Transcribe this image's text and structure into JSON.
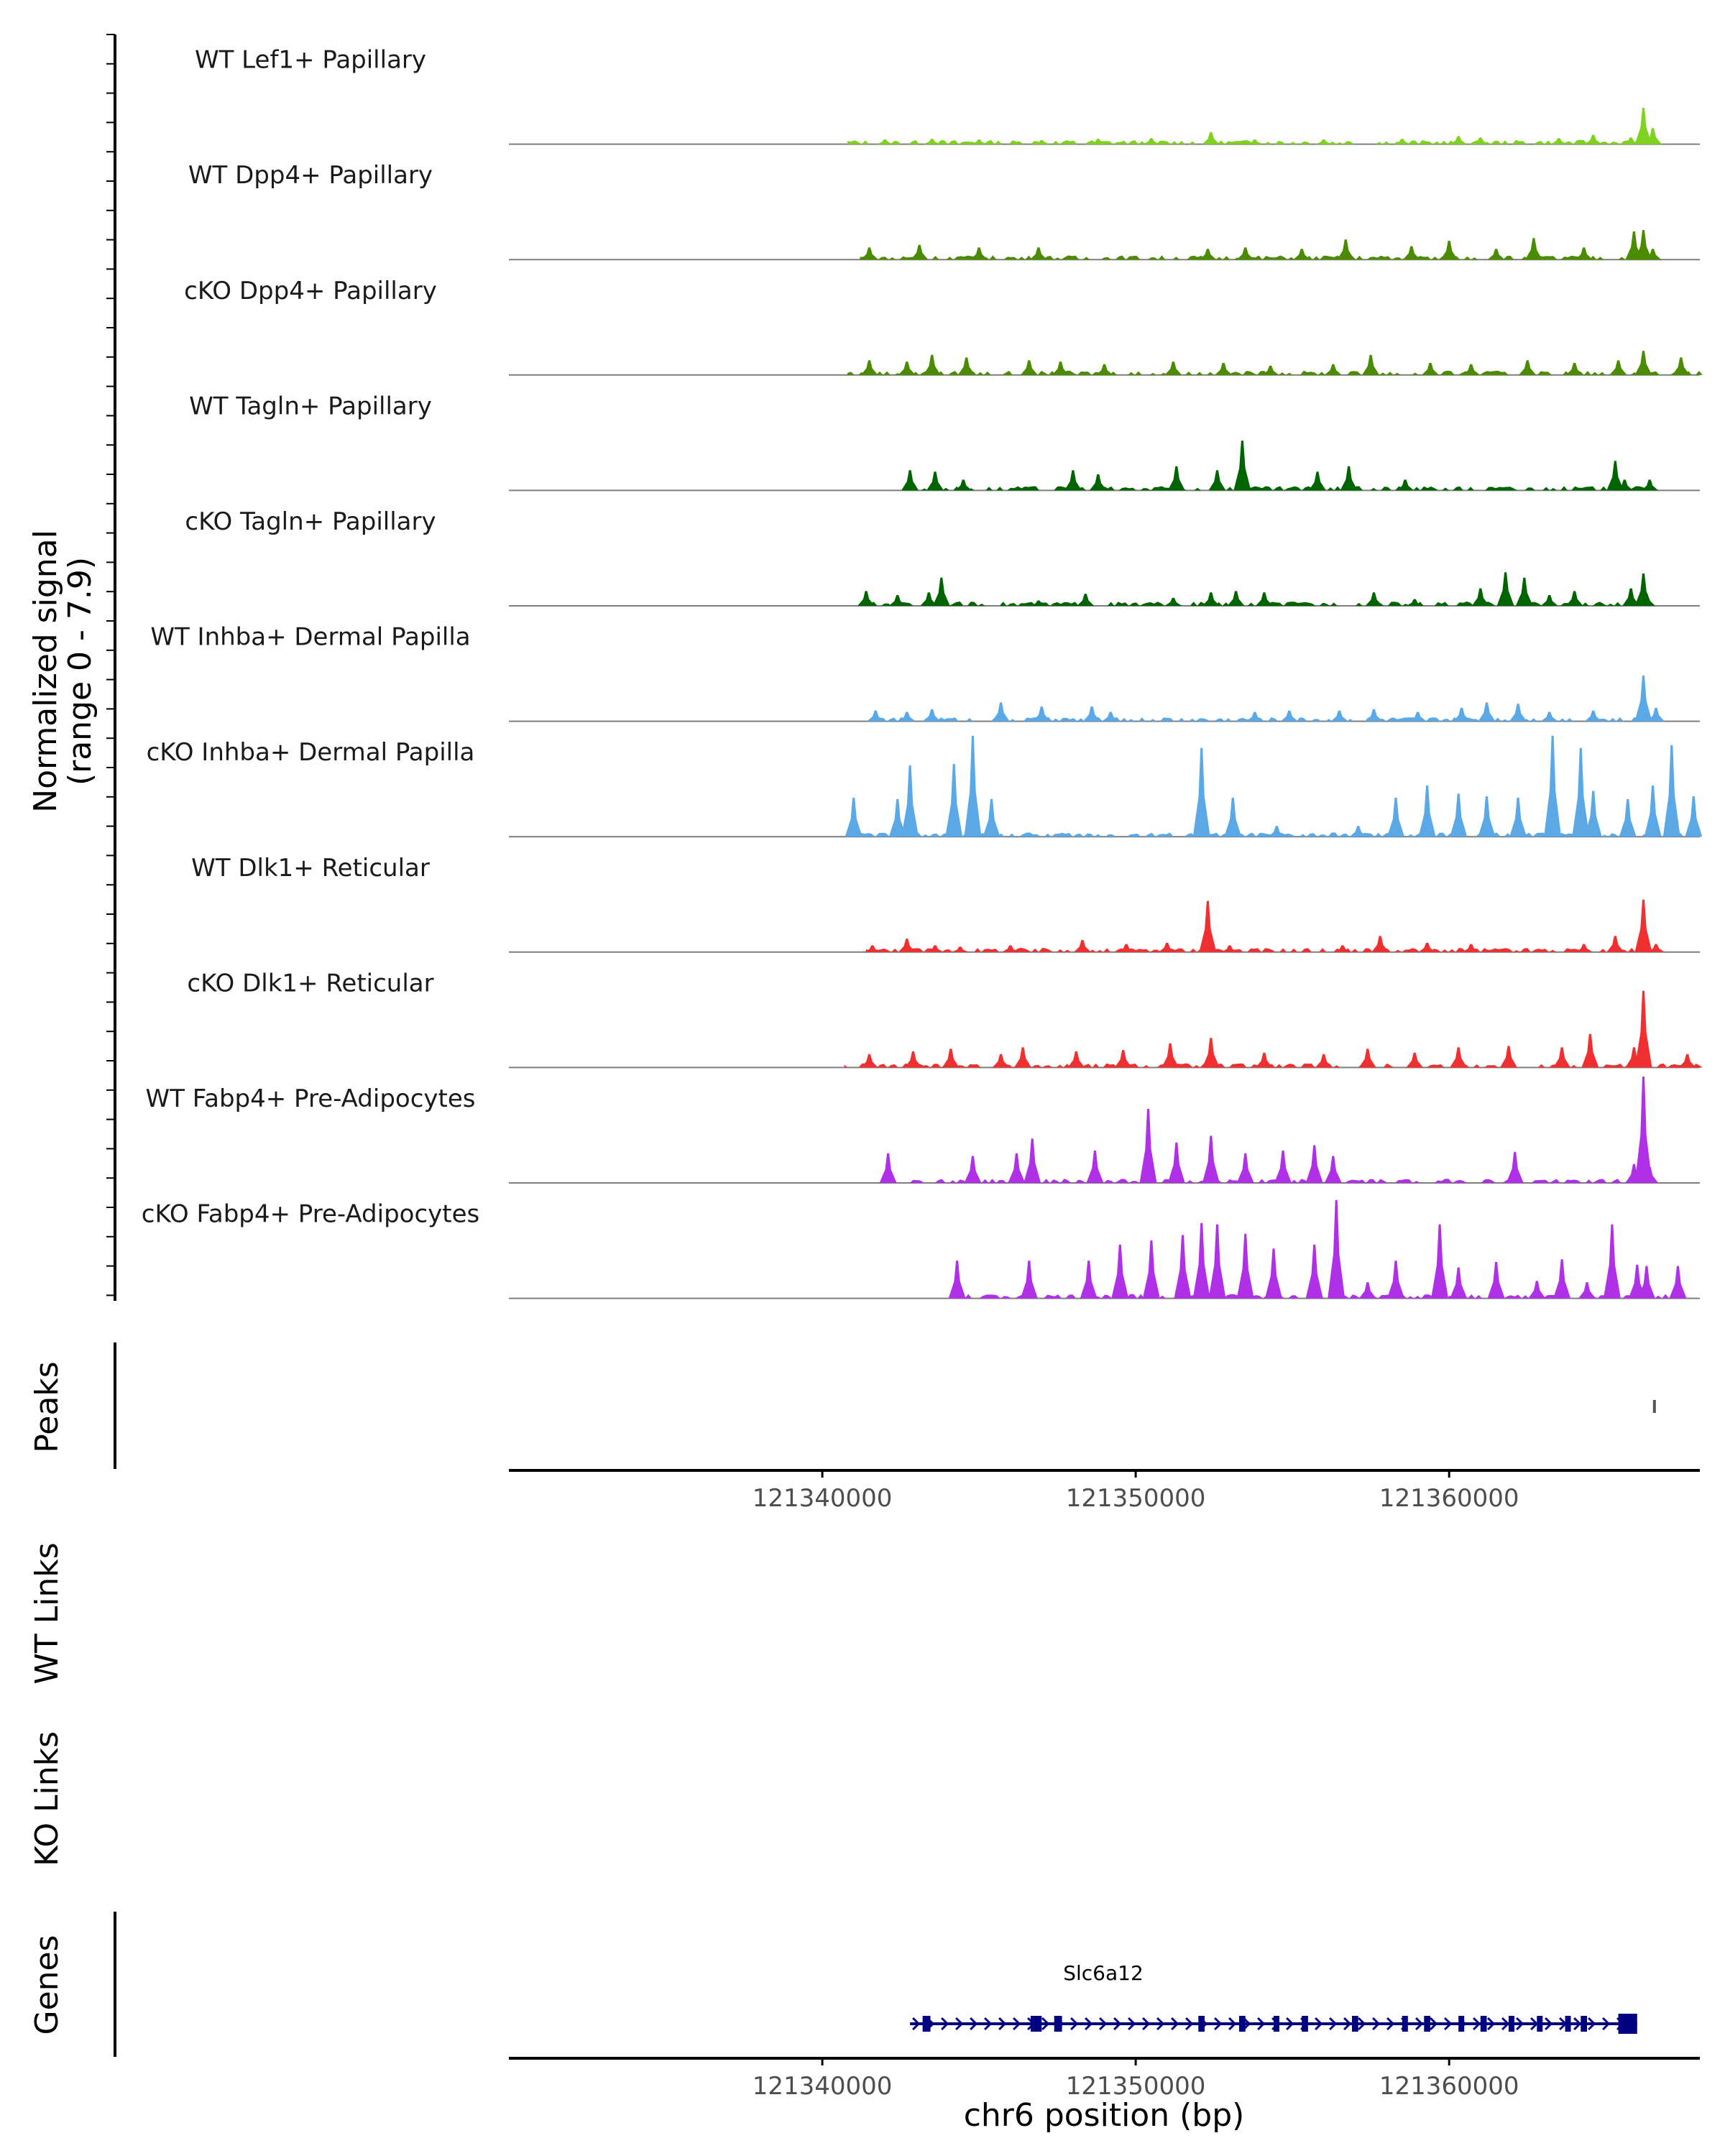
{
  "chart_data": {
    "type": "area",
    "chromosome": "chr6",
    "xlim": [
      121330000,
      121368000
    ],
    "x_ticks": [
      121340000,
      121350000,
      121360000
    ],
    "x_tick_labels": [
      "121340000",
      "121350000",
      "121360000"
    ],
    "xlabel": "chr6 position (bp)",
    "signal_ylabel_line1": "Normalized signal",
    "signal_ylabel_line2": "(range 0 - 7.9)",
    "ylim": [
      0,
      7.9
    ],
    "colors": {
      "lef1": "#7fd320",
      "dpp4": "#4b8b00",
      "tagln": "#006400",
      "inhba": "#5aa8e6",
      "dlk1": "#f03030",
      "fabp4": "#b030e8",
      "peak": "#555555",
      "gene": "#000080",
      "baseline": "#7f7f7f",
      "axis": "#000000"
    },
    "tracks": [
      {
        "label": "WT Lef1+ Papillary",
        "color_key": "lef1",
        "start": 121340800,
        "end": 121366800,
        "peaks": [
          [
            121342000,
            0.35
          ],
          [
            121343500,
            0.4
          ],
          [
            121345000,
            0.35
          ],
          [
            121347000,
            0.3
          ],
          [
            121348800,
            0.4
          ],
          [
            121350500,
            0.45
          ],
          [
            121352400,
            0.9
          ],
          [
            121353800,
            0.35
          ],
          [
            121356000,
            0.35
          ],
          [
            121358500,
            0.4
          ],
          [
            121360300,
            0.6
          ],
          [
            121361000,
            0.5
          ],
          [
            121363500,
            0.45
          ],
          [
            121364600,
            0.7
          ],
          [
            121365800,
            0.5
          ],
          [
            121366200,
            2.7
          ],
          [
            121366500,
            1.2
          ]
        ]
      },
      {
        "label": "WT Dpp4+ Papillary",
        "color_key": "dpp4",
        "start": 121341200,
        "end": 121366500,
        "peaks": [
          [
            121341500,
            0.9
          ],
          [
            121343100,
            1.1
          ],
          [
            121345000,
            0.9
          ],
          [
            121346900,
            0.9
          ],
          [
            121352300,
            0.8
          ],
          [
            121353500,
            0.9
          ],
          [
            121355300,
            0.8
          ],
          [
            121356700,
            1.5
          ],
          [
            121358800,
            1.0
          ],
          [
            121360000,
            1.4
          ],
          [
            121361500,
            0.8
          ],
          [
            121362700,
            1.6
          ],
          [
            121364300,
            0.9
          ],
          [
            121365900,
            2.1
          ],
          [
            121366200,
            2.2
          ],
          [
            121366500,
            0.8
          ]
        ]
      },
      {
        "label": "cKO Dpp4+ Papillary",
        "color_key": "dpp4",
        "start": 121340800,
        "end": 121368200,
        "peaks": [
          [
            121341500,
            1.1
          ],
          [
            121342700,
            1.0
          ],
          [
            121343500,
            1.5
          ],
          [
            121344600,
            1.3
          ],
          [
            121346600,
            1.1
          ],
          [
            121347600,
            1.0
          ],
          [
            121349000,
            0.8
          ],
          [
            121351200,
            1.0
          ],
          [
            121352800,
            0.9
          ],
          [
            121354300,
            0.7
          ],
          [
            121356300,
            0.8
          ],
          [
            121357500,
            1.5
          ],
          [
            121359400,
            0.9
          ],
          [
            121360700,
            0.8
          ],
          [
            121362500,
            1.1
          ],
          [
            121364000,
            0.9
          ],
          [
            121365400,
            1.1
          ],
          [
            121366200,
            1.8
          ],
          [
            121367400,
            1.3
          ]
        ]
      },
      {
        "label": "WT Tagln+ Papillary",
        "color_key": "tagln",
        "start": 121342800,
        "end": 121366300,
        "peaks": [
          [
            121342800,
            1.5
          ],
          [
            121343600,
            1.4
          ],
          [
            121344500,
            0.8
          ],
          [
            121348000,
            1.5
          ],
          [
            121348800,
            1.2
          ],
          [
            121351300,
            1.8
          ],
          [
            121352600,
            1.5
          ],
          [
            121353400,
            3.7
          ],
          [
            121355800,
            1.4
          ],
          [
            121356800,
            1.8
          ],
          [
            121358600,
            0.8
          ],
          [
            121365300,
            2.2
          ],
          [
            121365600,
            0.8
          ],
          [
            121366400,
            0.8
          ]
        ]
      },
      {
        "label": "cKO Tagln+ Papillary",
        "color_key": "tagln",
        "start": 121341300,
        "end": 121366300,
        "peaks": [
          [
            121341400,
            1.1
          ],
          [
            121342400,
            0.8
          ],
          [
            121343400,
            1.0
          ],
          [
            121343800,
            2.1
          ],
          [
            121346900,
            0.4
          ],
          [
            121348400,
            0.9
          ],
          [
            121351200,
            0.6
          ],
          [
            121352400,
            1.0
          ],
          [
            121353200,
            1.1
          ],
          [
            121354100,
            1.0
          ],
          [
            121357600,
            1.0
          ],
          [
            121358900,
            0.5
          ],
          [
            121361000,
            1.3
          ],
          [
            121361800,
            2.5
          ],
          [
            121362400,
            2.1
          ],
          [
            121363200,
            0.8
          ],
          [
            121364000,
            1.1
          ],
          [
            121365800,
            1.3
          ],
          [
            121366200,
            2.4
          ],
          [
            121366300,
            0.9
          ]
        ]
      },
      {
        "label": "WT Inhba+ Dermal Papilla",
        "color_key": "inhba",
        "start": 121341600,
        "end": 121366600,
        "peaks": [
          [
            121341700,
            0.8
          ],
          [
            121342700,
            0.7
          ],
          [
            121343500,
            0.9
          ],
          [
            121345700,
            1.4
          ],
          [
            121347000,
            1.1
          ],
          [
            121348600,
            1.1
          ],
          [
            121349200,
            0.7
          ],
          [
            121353800,
            0.7
          ],
          [
            121354900,
            0.8
          ],
          [
            121356500,
            0.8
          ],
          [
            121357600,
            0.9
          ],
          [
            121359000,
            0.7
          ],
          [
            121360400,
            1.0
          ],
          [
            121361200,
            1.4
          ],
          [
            121362200,
            1.3
          ],
          [
            121363200,
            0.7
          ],
          [
            121364600,
            0.8
          ],
          [
            121366200,
            3.4
          ],
          [
            121366600,
            1.0
          ]
        ]
      },
      {
        "label": "cKO Inhba+ Dermal Papilla",
        "color_key": "inhba",
        "start": 121341000,
        "end": 121367900,
        "peaks": [
          [
            121341000,
            2.9
          ],
          [
            121342400,
            2.8
          ],
          [
            121342800,
            5.3
          ],
          [
            121344200,
            5.4
          ],
          [
            121344800,
            7.5
          ],
          [
            121345400,
            2.8
          ],
          [
            121352100,
            6.6
          ],
          [
            121353100,
            2.9
          ],
          [
            121354500,
            0.8
          ],
          [
            121357100,
            0.8
          ],
          [
            121358300,
            2.9
          ],
          [
            121359300,
            3.8
          ],
          [
            121360300,
            3.2
          ],
          [
            121361200,
            3.0
          ],
          [
            121362200,
            2.9
          ],
          [
            121363300,
            7.5
          ],
          [
            121364200,
            6.6
          ],
          [
            121364600,
            3.4
          ],
          [
            121365700,
            2.8
          ],
          [
            121366500,
            3.8
          ],
          [
            121367100,
            6.8
          ],
          [
            121367800,
            3.0
          ]
        ]
      },
      {
        "label": "WT Dlk1+ Reticular",
        "color_key": "dlk1",
        "start": 121341400,
        "end": 121366600,
        "peaks": [
          [
            121341600,
            0.5
          ],
          [
            121342700,
            1.0
          ],
          [
            121343600,
            0.5
          ],
          [
            121344400,
            0.4
          ],
          [
            121346000,
            0.5
          ],
          [
            121348300,
            0.9
          ],
          [
            121349700,
            0.6
          ],
          [
            121351000,
            0.7
          ],
          [
            121352300,
            3.8
          ],
          [
            121353000,
            0.5
          ],
          [
            121356600,
            0.5
          ],
          [
            121357800,
            1.2
          ],
          [
            121359300,
            0.7
          ],
          [
            121360700,
            0.6
          ],
          [
            121364300,
            0.6
          ],
          [
            121365300,
            1.2
          ],
          [
            121366200,
            3.9
          ],
          [
            121366600,
            0.6
          ]
        ]
      },
      {
        "label": "cKO Dlk1+ Reticular",
        "color_key": "dlk1",
        "start": 121340700,
        "end": 121368100,
        "peaks": [
          [
            121341500,
            1.0
          ],
          [
            121342900,
            1.2
          ],
          [
            121344100,
            1.4
          ],
          [
            121345700,
            1.0
          ],
          [
            121346400,
            1.5
          ],
          [
            121348100,
            1.2
          ],
          [
            121349600,
            1.3
          ],
          [
            121351100,
            1.8
          ],
          [
            121352400,
            2.2
          ],
          [
            121354100,
            1.1
          ],
          [
            121356000,
            1.0
          ],
          [
            121357400,
            1.4
          ],
          [
            121358900,
            1.1
          ],
          [
            121360300,
            1.5
          ],
          [
            121361900,
            1.6
          ],
          [
            121363600,
            1.5
          ],
          [
            121364500,
            2.5
          ],
          [
            121365900,
            1.5
          ],
          [
            121366200,
            5.7
          ],
          [
            121367600,
            1.0
          ]
        ]
      },
      {
        "label": "WT Fabp4+ Pre-Adipocytes",
        "color_key": "fabp4",
        "start": 121342100,
        "end": 121366300,
        "peaks": [
          [
            121342100,
            2.2
          ],
          [
            121344800,
            2.0
          ],
          [
            121346200,
            2.2
          ],
          [
            121346700,
            3.3
          ],
          [
            121348700,
            2.4
          ],
          [
            121350400,
            5.5
          ],
          [
            121351300,
            3.0
          ],
          [
            121352400,
            3.5
          ],
          [
            121353500,
            2.2
          ],
          [
            121354700,
            2.4
          ],
          [
            121355700,
            2.8
          ],
          [
            121356300,
            2.0
          ],
          [
            121362100,
            2.3
          ],
          [
            121365900,
            1.4
          ],
          [
            121366200,
            7.9
          ],
          [
            121366400,
            1.2
          ]
        ]
      },
      {
        "label": "cKO Fabp4+ Pre-Adipocytes",
        "color_key": "fabp4",
        "start": 121344200,
        "end": 121367300,
        "peaks": [
          [
            121344300,
            2.8
          ],
          [
            121346600,
            2.8
          ],
          [
            121348500,
            2.8
          ],
          [
            121349500,
            4.0
          ],
          [
            121350500,
            4.3
          ],
          [
            121351500,
            4.7
          ],
          [
            121352100,
            5.6
          ],
          [
            121352600,
            5.5
          ],
          [
            121353500,
            4.8
          ],
          [
            121354400,
            3.7
          ],
          [
            121355700,
            4.0
          ],
          [
            121356400,
            7.3
          ],
          [
            121357400,
            1.2
          ],
          [
            121358300,
            2.8
          ],
          [
            121359700,
            5.5
          ],
          [
            121360300,
            2.3
          ],
          [
            121361500,
            2.7
          ],
          [
            121362800,
            1.3
          ],
          [
            121363600,
            2.9
          ],
          [
            121364400,
            1.2
          ],
          [
            121365200,
            5.5
          ],
          [
            121366000,
            2.5
          ],
          [
            121366300,
            2.4
          ],
          [
            121367300,
            2.4
          ]
        ]
      }
    ],
    "peaks_track": {
      "label": "Peaks",
      "intervals": [
        [
          121366500,
          121366600
        ]
      ]
    },
    "links_tracks": [
      "WT Links",
      "KO Links"
    ],
    "genes_track": {
      "label": "Genes",
      "gene": {
        "name": "Slc6a12",
        "start": 121342800,
        "end": 121366000,
        "strand": "+",
        "exons": [
          [
            121343200,
            121343450
          ],
          [
            121346650,
            121347000
          ],
          [
            121347400,
            121347650
          ],
          [
            121352000,
            121352200
          ],
          [
            121353300,
            121353500
          ],
          [
            121354400,
            121354550
          ],
          [
            121355300,
            121355500
          ],
          [
            121356900,
            121357100
          ],
          [
            121358500,
            121358650
          ],
          [
            121359200,
            121359400
          ],
          [
            121360300,
            121360450
          ],
          [
            121361000,
            121361200
          ],
          [
            121361900,
            121362050
          ],
          [
            121362800,
            121362950
          ],
          [
            121363700,
            121363850
          ],
          [
            121364200,
            121364400
          ],
          [
            121365400,
            121366000
          ]
        ]
      }
    }
  }
}
